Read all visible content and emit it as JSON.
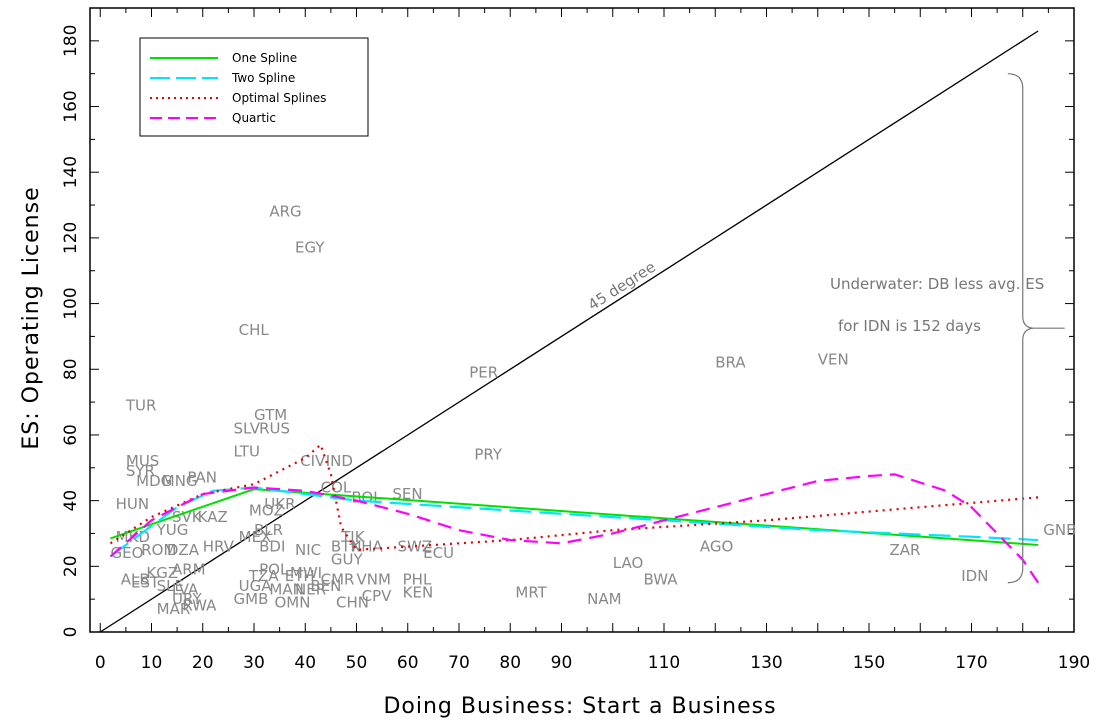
{
  "chart_data": {
    "type": "scatter",
    "xlabel": "Doing Business: Start a Business",
    "ylabel": "ES:  Operating License",
    "xlim": [
      -2,
      190
    ],
    "ylim": [
      0,
      190
    ],
    "x_ticks": [
      0,
      10,
      20,
      30,
      40,
      50,
      60,
      70,
      80,
      90,
      110,
      130,
      150,
      170,
      190
    ],
    "y_ticks": [
      0,
      20,
      40,
      60,
      80,
      100,
      120,
      140,
      160,
      180
    ],
    "grid": false,
    "legend_position": "top-left",
    "reference_line": {
      "label": "45 degree",
      "x": [
        0,
        183
      ],
      "y": [
        0,
        183
      ],
      "color": "#000000"
    },
    "annotation": {
      "lines": [
        "Underwater: DB less avg. ES",
        "for IDN is 152 days"
      ],
      "brace_x": 180,
      "y_range": [
        15,
        170
      ]
    },
    "series": [
      {
        "name": "One Spline",
        "style": "solid",
        "color": "#00e000",
        "x": [
          2,
          30,
          183
        ],
        "y": [
          28.5,
          43.5,
          26.5
        ]
      },
      {
        "name": "Two Spline",
        "style": "long-dash",
        "color": "#00e5ff",
        "x": [
          2,
          8,
          15,
          22,
          30,
          50,
          80,
          110,
          140,
          170,
          183
        ],
        "y": [
          23,
          30,
          38,
          43,
          44,
          40,
          37,
          34,
          31,
          29,
          28
        ]
      },
      {
        "name": "Optimal Splines",
        "style": "dotted",
        "color": "#e00000",
        "x": [
          2,
          10,
          20,
          30,
          40,
          43,
          45,
          47,
          50,
          60,
          80,
          100,
          130,
          160,
          183
        ],
        "y": [
          27,
          35,
          42,
          45,
          53,
          57,
          48,
          32,
          25,
          26,
          28,
          31,
          34,
          38,
          41
        ]
      },
      {
        "name": "Quartic",
        "style": "dashed",
        "color": "#ff00ff",
        "x": [
          2,
          10,
          20,
          30,
          40,
          50,
          60,
          70,
          80,
          90,
          100,
          110,
          120,
          130,
          140,
          150,
          155,
          165,
          170,
          175,
          180,
          183
        ],
        "y": [
          23,
          34,
          42,
          44,
          43,
          40,
          36,
          31,
          28,
          27,
          30,
          34,
          38,
          42,
          46,
          47.5,
          48,
          43,
          38,
          30,
          22,
          15
        ]
      }
    ],
    "points": [
      {
        "label": "ARG",
        "x": 33,
        "y": 128
      },
      {
        "label": "EGY",
        "x": 38,
        "y": 117
      },
      {
        "label": "CHL",
        "x": 27,
        "y": 92
      },
      {
        "label": "PER",
        "x": 72,
        "y": 79
      },
      {
        "label": "BRA",
        "x": 120,
        "y": 82
      },
      {
        "label": "VEN",
        "x": 140,
        "y": 83
      },
      {
        "label": "TUR",
        "x": 5,
        "y": 69
      },
      {
        "label": "GTM",
        "x": 30,
        "y": 66
      },
      {
        "label": "SLV",
        "x": 26,
        "y": 62
      },
      {
        "label": "RUS",
        "x": 31,
        "y": 62
      },
      {
        "label": "LTU",
        "x": 26,
        "y": 55
      },
      {
        "label": "PRY",
        "x": 73,
        "y": 54
      },
      {
        "label": "MUS",
        "x": 5,
        "y": 52
      },
      {
        "label": "SYR",
        "x": 5,
        "y": 49
      },
      {
        "label": "MDG",
        "x": 7,
        "y": 46
      },
      {
        "label": "MNG",
        "x": 12,
        "y": 46
      },
      {
        "label": "PAN",
        "x": 17,
        "y": 47
      },
      {
        "label": "CIV",
        "x": 39,
        "y": 52
      },
      {
        "label": "IND",
        "x": 44,
        "y": 52
      },
      {
        "label": "COL",
        "x": 43,
        "y": 44
      },
      {
        "label": "BOL",
        "x": 49,
        "y": 41
      },
      {
        "label": "SEN",
        "x": 57,
        "y": 42
      },
      {
        "label": "HUN",
        "x": 3,
        "y": 39
      },
      {
        "label": "SVK",
        "x": 14,
        "y": 35
      },
      {
        "label": "KAZ",
        "x": 19,
        "y": 35
      },
      {
        "label": "MOZ",
        "x": 29,
        "y": 37
      },
      {
        "label": "UKR",
        "x": 32,
        "y": 39
      },
      {
        "label": "YUG",
        "x": 11,
        "y": 31
      },
      {
        "label": "MKD",
        "x": 3,
        "y": 29
      },
      {
        "label": "BLR",
        "x": 30,
        "y": 31
      },
      {
        "label": "MEX",
        "x": 27,
        "y": 29
      },
      {
        "label": "TJK",
        "x": 47,
        "y": 29
      },
      {
        "label": "KHA",
        "x": 49,
        "y": 26
      },
      {
        "label": "SWZ",
        "x": 58,
        "y": 26
      },
      {
        "label": "GEO",
        "x": 2,
        "y": 24
      },
      {
        "label": "ROM",
        "x": 8,
        "y": 25
      },
      {
        "label": "DZA",
        "x": 13,
        "y": 25
      },
      {
        "label": "HRV",
        "x": 20,
        "y": 26
      },
      {
        "label": "BDI",
        "x": 31,
        "y": 26
      },
      {
        "label": "NIC",
        "x": 38,
        "y": 25
      },
      {
        "label": "BTN",
        "x": 45,
        "y": 26
      },
      {
        "label": "ECU",
        "x": 63,
        "y": 24
      },
      {
        "label": "GUY",
        "x": 45,
        "y": 22
      },
      {
        "label": "AGO",
        "x": 117,
        "y": 26
      },
      {
        "label": "ZAR",
        "x": 154,
        "y": 25
      },
      {
        "label": "GNB",
        "x": 184,
        "y": 31
      },
      {
        "label": "LAO",
        "x": 100,
        "y": 21
      },
      {
        "label": "ALB",
        "x": 4,
        "y": 16
      },
      {
        "label": "EST",
        "x": 6,
        "y": 15
      },
      {
        "label": "KGZ",
        "x": 9,
        "y": 18
      },
      {
        "label": "ARM",
        "x": 14,
        "y": 19
      },
      {
        "label": "POL",
        "x": 31,
        "y": 19
      },
      {
        "label": "MWI",
        "x": 37,
        "y": 18
      },
      {
        "label": "CMR",
        "x": 43,
        "y": 16
      },
      {
        "label": "TZA",
        "x": 29,
        "y": 17
      },
      {
        "label": "ETH",
        "x": 36,
        "y": 17
      },
      {
        "label": "VNM",
        "x": 50,
        "y": 16
      },
      {
        "label": "PHL",
        "x": 59,
        "y": 16
      },
      {
        "label": "BWA",
        "x": 106,
        "y": 16
      },
      {
        "label": "IDN",
        "x": 168,
        "y": 17
      },
      {
        "label": "UGA",
        "x": 27,
        "y": 14
      },
      {
        "label": "SLE",
        "x": 11,
        "y": 14
      },
      {
        "label": "LVA",
        "x": 14,
        "y": 13
      },
      {
        "label": "MAN",
        "x": 33,
        "y": 13
      },
      {
        "label": "NER",
        "x": 38,
        "y": 13
      },
      {
        "label": "BEN",
        "x": 41,
        "y": 14
      },
      {
        "label": "CHN",
        "x": 46,
        "y": 9
      },
      {
        "label": "CPV",
        "x": 51,
        "y": 11
      },
      {
        "label": "KEN",
        "x": 59,
        "y": 12
      },
      {
        "label": "MRT",
        "x": 81,
        "y": 12
      },
      {
        "label": "NAM",
        "x": 95,
        "y": 10
      },
      {
        "label": "GMB",
        "x": 26,
        "y": 10
      },
      {
        "label": "OMN",
        "x": 34,
        "y": 9
      },
      {
        "label": "URY",
        "x": 14,
        "y": 10
      },
      {
        "label": "MAR",
        "x": 11,
        "y": 7
      },
      {
        "label": "RWA",
        "x": 16,
        "y": 8
      }
    ]
  }
}
